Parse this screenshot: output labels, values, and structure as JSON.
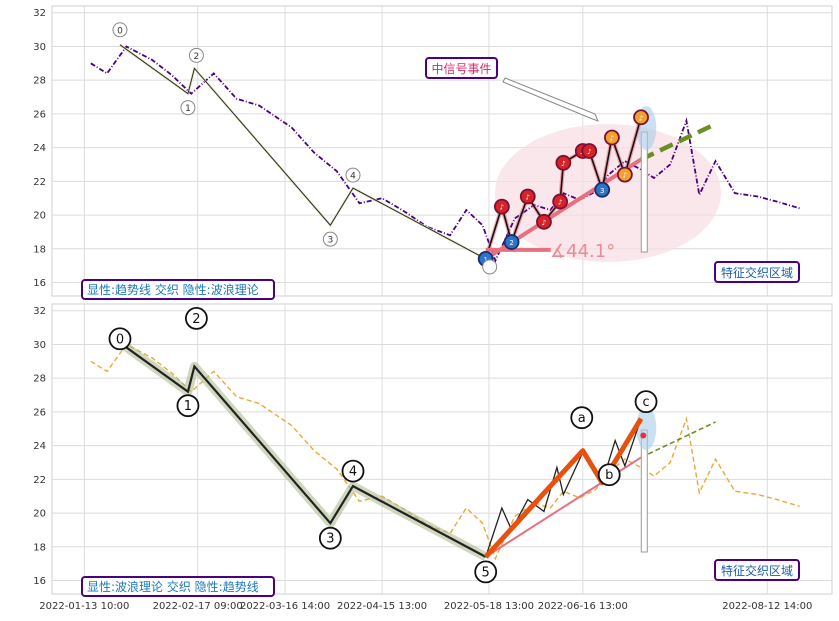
{
  "chart_data": [
    {
      "type": "line",
      "panel": "top",
      "ylim": [
        15.2,
        32.4
      ],
      "yticks": [
        "16",
        "18",
        "20",
        "22",
        "24",
        "26",
        "28",
        "30",
        "32"
      ],
      "grid": true,
      "series_color": "#4b0082",
      "x": [
        "2022-01-15",
        "2022-01-20",
        "2022-01-26",
        "2022-02-03",
        "2022-02-09",
        "2022-02-15",
        "2022-02-22",
        "2022-03-01",
        "2022-03-08",
        "2022-03-18",
        "2022-03-25",
        "2022-04-01",
        "2022-04-08",
        "2022-04-15",
        "2022-04-22",
        "2022-04-29",
        "2022-05-06",
        "2022-05-11",
        "2022-05-16",
        "2022-05-20",
        "2022-05-26",
        "2022-06-01",
        "2022-06-06",
        "2022-06-10",
        "2022-06-15",
        "2022-06-20",
        "2022-06-24",
        "2022-06-29",
        "2022-07-04",
        "2022-07-08",
        "2022-07-13",
        "2022-07-18",
        "2022-07-22",
        "2022-07-27",
        "2022-08-02",
        "2022-08-09",
        "2022-08-15",
        "2022-08-22"
      ],
      "values": [
        29.0,
        28.4,
        30.0,
        29.2,
        28.3,
        27.2,
        28.4,
        26.9,
        26.5,
        25.2,
        23.7,
        22.6,
        20.7,
        21.0,
        20.2,
        19.3,
        18.8,
        20.3,
        19.4,
        17.3,
        19.8,
        20.6,
        20.3,
        21.3,
        20.9,
        21.4,
        22.4,
        23.2,
        22.7,
        22.2,
        23.0,
        25.6,
        21.2,
        23.2,
        21.3,
        21.1,
        20.8,
        20.4
      ],
      "wave_points": [
        {
          "label": "0",
          "x": "2022-01-24",
          "y": 30.1
        },
        {
          "label": "1",
          "x": "2022-02-14",
          "y": 27.2
        },
        {
          "label": "2",
          "x": "2022-02-16",
          "y": 28.7
        },
        {
          "label": "3",
          "x": "2022-03-30",
          "y": 19.4
        },
        {
          "label": "4",
          "x": "2022-04-06",
          "y": 21.6
        },
        {
          "label": "5",
          "x": "2022-05-17",
          "y": 17.4
        }
      ],
      "signal_points": [
        {
          "x": "2022-05-17",
          "y": 17.4,
          "color": "blue",
          "label": "1"
        },
        {
          "x": "2022-05-22",
          "y": 20.5,
          "color": "red",
          "label": "♪"
        },
        {
          "x": "2022-05-25",
          "y": 18.4,
          "color": "blue",
          "label": "2"
        },
        {
          "x": "2022-05-30",
          "y": 21.1,
          "color": "red",
          "label": "♪"
        },
        {
          "x": "2022-06-04",
          "y": 19.6,
          "color": "red",
          "label": "♪"
        },
        {
          "x": "2022-06-09",
          "y": 20.8,
          "color": "red",
          "label": "♪"
        },
        {
          "x": "2022-06-10",
          "y": 23.1,
          "color": "red",
          "label": "♪"
        },
        {
          "x": "2022-06-16",
          "y": 23.8,
          "color": "red",
          "label": "♬"
        },
        {
          "x": "2022-06-18",
          "y": 23.8,
          "color": "red",
          "label": "♪"
        },
        {
          "x": "2022-06-22",
          "y": 21.5,
          "color": "blue",
          "label": "3"
        },
        {
          "x": "2022-06-25",
          "y": 24.6,
          "color": "orange",
          "label": "♪"
        },
        {
          "x": "2022-06-29",
          "y": 22.4,
          "color": "orange",
          "label": "♪"
        },
        {
          "x": "2022-07-04",
          "y": 25.8,
          "color": "orange",
          "label": "♪"
        }
      ],
      "trendline": {
        "from": {
          "x": "2022-05-17",
          "y": 17.4
        },
        "to": {
          "x": "2022-07-04",
          "y": 23.3
        },
        "dashed_to": {
          "x": "2022-07-27",
          "y": 25.4
        }
      },
      "angle_label": "∡44.1°",
      "annotation": "中信号事件",
      "region_label": "特征交织区域",
      "legend": "显性:趋势线 交织 隐性:波浪理论"
    },
    {
      "type": "line",
      "panel": "bottom",
      "ylim": [
        15.2,
        32.4
      ],
      "yticks": [
        "16",
        "18",
        "20",
        "22",
        "24",
        "26",
        "28",
        "30",
        "32"
      ],
      "grid": true,
      "series_color": "#e8a93a",
      "x": [
        "2022-01-15",
        "2022-01-20",
        "2022-01-26",
        "2022-02-03",
        "2022-02-09",
        "2022-02-15",
        "2022-02-22",
        "2022-03-01",
        "2022-03-08",
        "2022-03-18",
        "2022-03-25",
        "2022-04-01",
        "2022-04-08",
        "2022-04-15",
        "2022-04-22",
        "2022-04-29",
        "2022-05-06",
        "2022-05-11",
        "2022-05-16",
        "2022-05-20",
        "2022-05-26",
        "2022-06-01",
        "2022-06-06",
        "2022-06-10",
        "2022-06-15",
        "2022-06-20",
        "2022-06-24",
        "2022-06-29",
        "2022-07-04",
        "2022-07-08",
        "2022-07-13",
        "2022-07-18",
        "2022-07-22",
        "2022-07-27",
        "2022-08-02",
        "2022-08-09",
        "2022-08-15",
        "2022-08-22"
      ],
      "values": [
        29.0,
        28.4,
        30.0,
        29.2,
        28.3,
        27.2,
        28.4,
        26.9,
        26.5,
        25.2,
        23.7,
        22.6,
        20.7,
        21.0,
        20.2,
        19.3,
        18.8,
        20.3,
        19.4,
        17.3,
        19.8,
        20.6,
        20.3,
        21.3,
        20.9,
        21.4,
        22.4,
        23.2,
        22.7,
        22.2,
        23.0,
        25.6,
        21.2,
        23.2,
        21.3,
        21.1,
        20.8,
        20.4
      ],
      "wave_points": [
        {
          "label": "0",
          "x": "2022-01-24",
          "y": 30.1
        },
        {
          "label": "1",
          "x": "2022-02-14",
          "y": 27.2
        },
        {
          "label": "2",
          "x": "2022-02-16",
          "y": 28.7
        },
        {
          "label": "3",
          "x": "2022-03-30",
          "y": 19.4
        },
        {
          "label": "4",
          "x": "2022-04-06",
          "y": 21.6
        },
        {
          "label": "5",
          "x": "2022-05-17",
          "y": 17.4
        },
        {
          "label": "a",
          "x": "2022-06-16",
          "y": 23.7
        },
        {
          "label": "b",
          "x": "2022-06-22",
          "y": 21.8
        },
        {
          "label": "c",
          "x": "2022-07-04",
          "y": 25.6
        }
      ],
      "up_zigzag": [
        {
          "x": "2022-05-17",
          "y": 17.4
        },
        {
          "x": "2022-05-22",
          "y": 20.3
        },
        {
          "x": "2022-05-25",
          "y": 19.0
        },
        {
          "x": "2022-05-30",
          "y": 20.8
        },
        {
          "x": "2022-06-04",
          "y": 20.1
        },
        {
          "x": "2022-06-08",
          "y": 22.7
        },
        {
          "x": "2022-06-10",
          "y": 21.1
        },
        {
          "x": "2022-06-16",
          "y": 23.6
        },
        {
          "x": "2022-06-22",
          "y": 21.8
        },
        {
          "x": "2022-06-26",
          "y": 24.3
        },
        {
          "x": "2022-06-29",
          "y": 22.8
        },
        {
          "x": "2022-07-04",
          "y": 25.6
        }
      ],
      "trendline": {
        "from": {
          "x": "2022-05-17",
          "y": 17.4
        },
        "to": {
          "x": "2022-07-04",
          "y": 23.3
        },
        "dashed_to": {
          "x": "2022-07-27",
          "y": 25.4
        }
      },
      "region_label": "特征交织区域",
      "legend": "显性:波浪理论 交织 隐性:趋势线"
    }
  ],
  "x_axis": {
    "ticks": [
      {
        "label": "2022-01-13 10:00",
        "date": "2022-01-13"
      },
      {
        "label": "2022-02-17 09:00",
        "date": "2022-02-17"
      },
      {
        "label": "2022-03-16 14:00",
        "date": "2022-03-16"
      },
      {
        "label": "2022-04-15 13:00",
        "date": "2022-04-15"
      },
      {
        "label": "2022-05-18 13:00",
        "date": "2022-05-18"
      },
      {
        "label": "2022-06-16 13:00",
        "date": "2022-06-16"
      },
      {
        "label": "2022-08-12 14:00",
        "date": "2022-08-12"
      }
    ]
  }
}
